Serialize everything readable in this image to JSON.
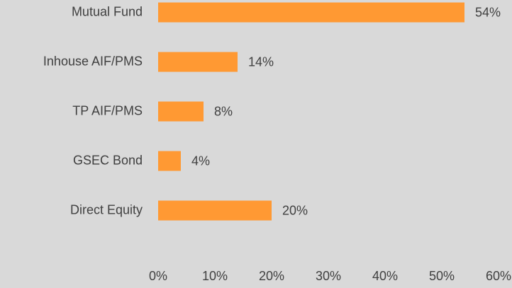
{
  "chart_data": {
    "type": "bar",
    "orientation": "horizontal",
    "categories": [
      "Mutual Fund",
      "Inhouse AIF/PMS",
      "TP AIF/PMS",
      "GSEC Bond",
      "Direct Equity"
    ],
    "values": [
      54,
      14,
      8,
      4,
      20
    ],
    "value_labels": [
      "54%",
      "14%",
      "8%",
      "4%",
      "20%"
    ],
    "color": "#ff9933",
    "xlim": [
      0,
      60
    ],
    "xticks": [
      {
        "value": 0,
        "label": "0%"
      },
      {
        "value": 10,
        "label": "10%"
      },
      {
        "value": 20,
        "label": "20%"
      },
      {
        "value": 30,
        "label": "30%"
      },
      {
        "value": 40,
        "label": "40%"
      },
      {
        "value": 50,
        "label": "50%"
      },
      {
        "value": 60,
        "label": "60%"
      }
    ],
    "grid": false
  }
}
